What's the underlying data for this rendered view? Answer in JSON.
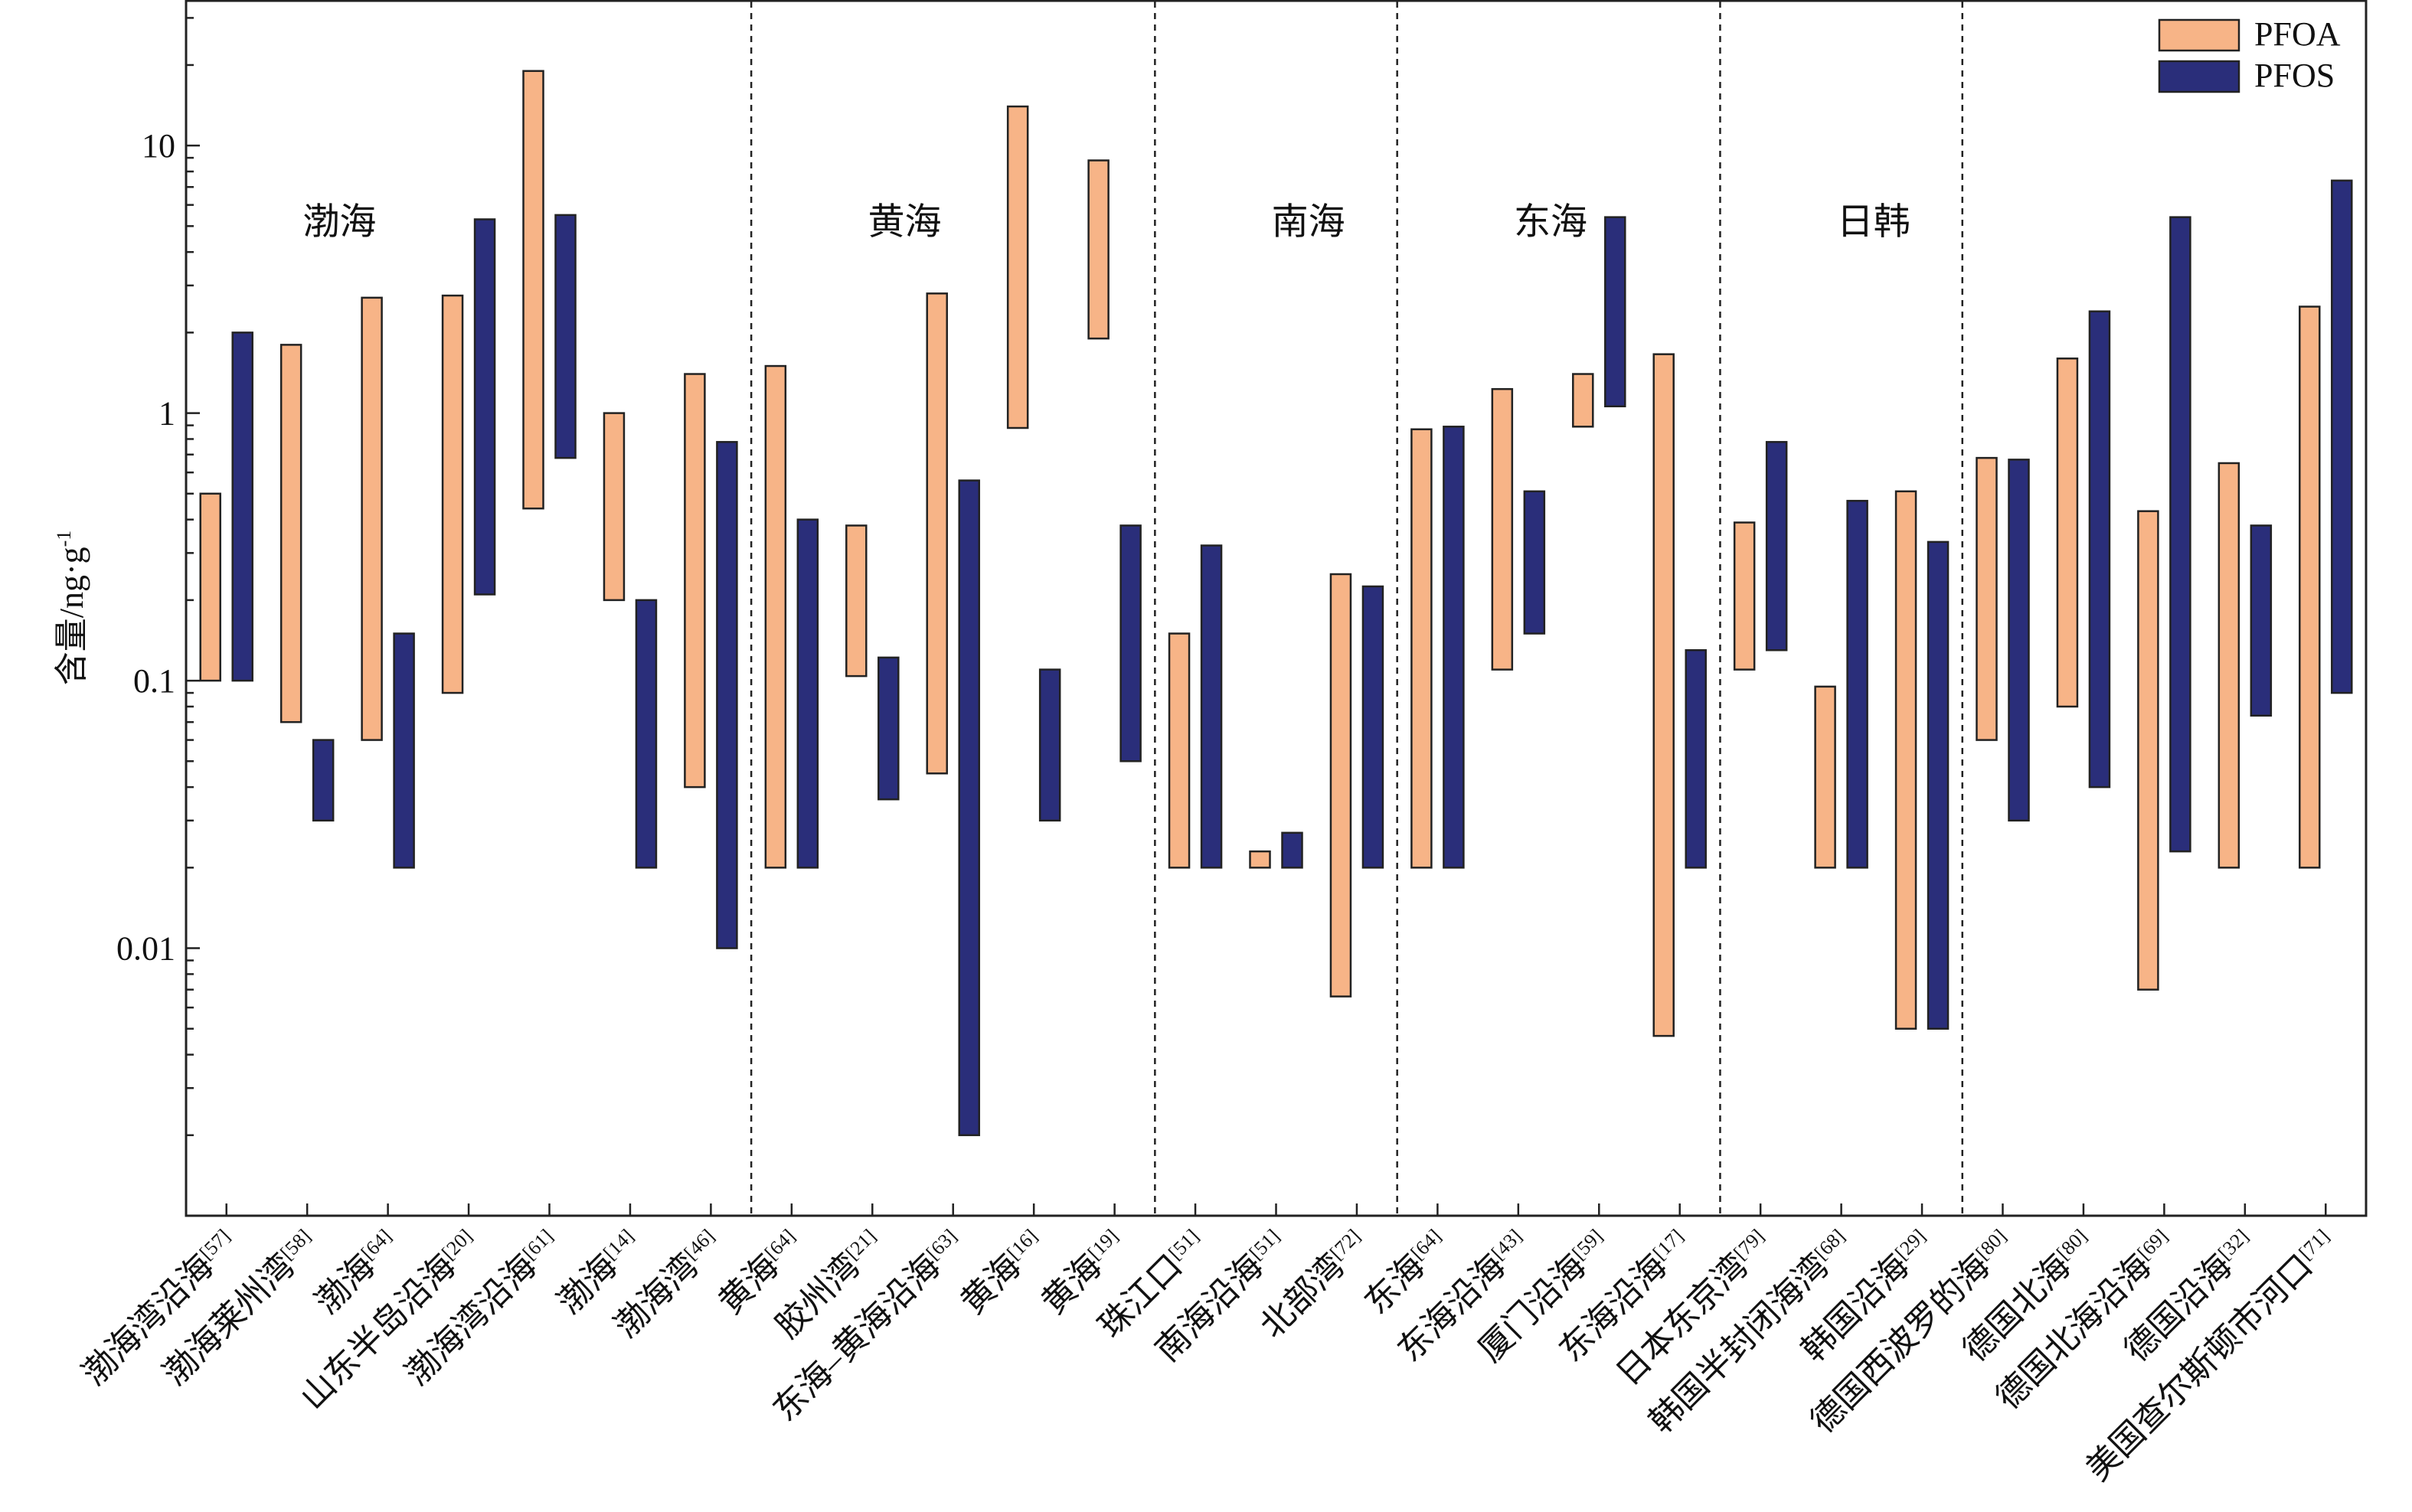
{
  "chart_data": {
    "type": "bar",
    "subtype": "floating-range-log",
    "title": "",
    "xlabel": "",
    "ylabel": "含量/ng·g",
    "ylabel_sup": "-1",
    "yscale": "log",
    "ylim": [
      0.001,
      35
    ],
    "yticks": [
      {
        "value": 0.01,
        "label": "0.01"
      },
      {
        "value": 0.1,
        "label": "0.1"
      },
      {
        "value": 1,
        "label": "1"
      },
      {
        "value": 10,
        "label": "10"
      }
    ],
    "legend": {
      "placement": "top-right"
    },
    "series": [
      {
        "name": "PFOA",
        "color": "#F7B487"
      },
      {
        "name": "PFOS",
        "color": "#2A2E7A"
      }
    ],
    "categories": [
      {
        "label": "渤海湾沿海",
        "ref": "[57]",
        "pfoa": [
          0.1,
          0.5
        ],
        "pfos": [
          0.1,
          2.0
        ]
      },
      {
        "label": "渤海莱州湾",
        "ref": "[58]",
        "pfoa": [
          0.07,
          1.8
        ],
        "pfos": [
          0.03,
          0.06
        ]
      },
      {
        "label": "渤海",
        "ref": "[64]",
        "pfoa": [
          0.06,
          2.7
        ],
        "pfos": [
          0.02,
          0.15
        ]
      },
      {
        "label": "山东半岛沿海",
        "ref": "[20]",
        "pfoa": [
          0.09,
          2.75
        ],
        "pfos": [
          0.21,
          5.3
        ]
      },
      {
        "label": "渤海湾沿海",
        "ref": "[61]",
        "pfoa": [
          0.44,
          19
        ],
        "pfos": [
          0.68,
          5.5
        ]
      },
      {
        "label": "渤海",
        "ref": "[14]",
        "pfoa": [
          0.2,
          1.0
        ],
        "pfos": [
          0.02,
          0.2
        ]
      },
      {
        "label": "渤海湾",
        "ref": "[46]",
        "pfoa": [
          0.04,
          1.4
        ],
        "pfos": [
          0.01,
          0.78
        ]
      },
      {
        "label": "黄海",
        "ref": "[64]",
        "pfoa": [
          0.02,
          1.5
        ],
        "pfos": [
          0.02,
          0.4
        ]
      },
      {
        "label": "胶州湾",
        "ref": "[21]",
        "pfoa": [
          0.104,
          0.38
        ],
        "pfos": [
          0.036,
          0.122
        ]
      },
      {
        "label": "东海–黄海沿海",
        "ref": "[63]",
        "pfoa": [
          0.045,
          2.8
        ],
        "pfos": [
          0.002,
          0.56
        ]
      },
      {
        "label": "黄海",
        "ref": "[16]",
        "pfoa": [
          0.88,
          14
        ],
        "pfos": [
          0.03,
          0.11
        ]
      },
      {
        "label": "黄海",
        "ref": "[19]",
        "pfoa": [
          1.9,
          8.8
        ],
        "pfos": [
          0.05,
          0.38
        ]
      },
      {
        "label": "珠江口",
        "ref": "[51]",
        "pfoa": [
          0.02,
          0.15
        ],
        "pfos": [
          0.02,
          0.32
        ]
      },
      {
        "label": "南海沿海",
        "ref": "[51]",
        "pfoa": [
          0.02,
          0.023
        ],
        "pfos": [
          0.02,
          0.027
        ]
      },
      {
        "label": "北部湾",
        "ref": "[72]",
        "pfoa": [
          0.0066,
          0.25
        ],
        "pfos": [
          0.02,
          0.225
        ]
      },
      {
        "label": "东海",
        "ref": "[64]",
        "pfoa": [
          0.02,
          0.87
        ],
        "pfos": [
          0.02,
          0.89
        ]
      },
      {
        "label": "东海沿海",
        "ref": "[43]",
        "pfoa": [
          0.11,
          1.23
        ],
        "pfos": [
          0.15,
          0.51
        ]
      },
      {
        "label": "厦门沿海",
        "ref": "[59]",
        "pfoa": [
          0.89,
          1.4
        ],
        "pfos": [
          1.06,
          5.4
        ]
      },
      {
        "label": "东海沿海",
        "ref": "[17]",
        "pfoa": [
          0.0047,
          1.66
        ],
        "pfos": [
          0.02,
          0.13
        ]
      },
      {
        "label": "日本东京湾",
        "ref": "[79]",
        "pfoa": [
          0.11,
          0.39
        ],
        "pfos": [
          0.13,
          0.78
        ]
      },
      {
        "label": "韩国半封闭海湾",
        "ref": "[68]",
        "pfoa": [
          0.02,
          0.095
        ],
        "pfos": [
          0.02,
          0.47
        ]
      },
      {
        "label": "韩国沿海",
        "ref": "[29]",
        "pfoa": [
          0.005,
          0.51
        ],
        "pfos": [
          0.005,
          0.33
        ]
      },
      {
        "label": "德国西波罗的海",
        "ref": "[80]",
        "pfoa": [
          0.06,
          0.68
        ],
        "pfos": [
          0.03,
          0.67
        ]
      },
      {
        "label": "德国北海",
        "ref": "[80]",
        "pfoa": [
          0.08,
          1.6
        ],
        "pfos": [
          0.04,
          2.4
        ]
      },
      {
        "label": "德国北海沿海",
        "ref": "[69]",
        "pfoa": [
          0.007,
          0.43
        ],
        "pfos": [
          0.023,
          5.4
        ]
      },
      {
        "label": "德国沿海",
        "ref": "[32]",
        "pfoa": [
          0.02,
          0.65
        ],
        "pfos": [
          0.074,
          0.38
        ]
      },
      {
        "label": "美国查尔斯顿市河口",
        "ref": "[71]",
        "pfoa": [
          0.02,
          2.5
        ],
        "pfos": [
          0.09,
          7.4
        ]
      }
    ],
    "regions": [
      {
        "label": "渤海",
        "start": 0,
        "end": 6
      },
      {
        "label": "黄海",
        "start": 7,
        "end": 11
      },
      {
        "label": "南海",
        "start": 12,
        "end": 14
      },
      {
        "label": "东海",
        "start": 15,
        "end": 18
      },
      {
        "label": "日韩",
        "start": 19,
        "end": 21
      },
      {
        "label": "",
        "start": 22,
        "end": 26
      }
    ],
    "dividers_after": [
      6,
      11,
      14,
      18,
      21
    ]
  }
}
